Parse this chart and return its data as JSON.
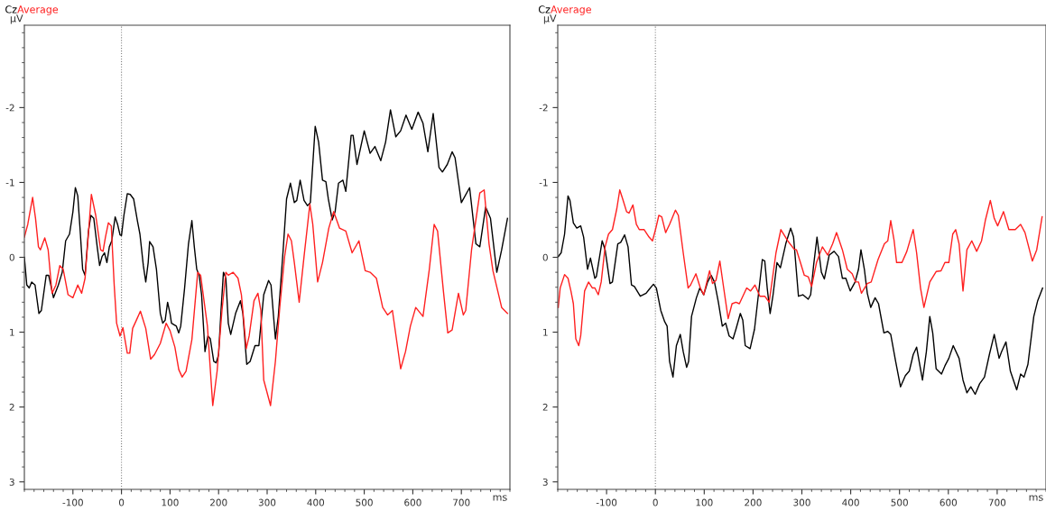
{
  "chart_data": [
    {
      "type": "line",
      "xlabel": "ms",
      "ylabel": "µV",
      "xlim": [
        -200,
        800
      ],
      "ylim": [
        3.1,
        -3.1
      ],
      "xticks": [
        -100,
        0,
        100,
        200,
        300,
        400,
        500,
        600,
        700
      ],
      "yticks": [
        -2,
        -1,
        0,
        1,
        2,
        3
      ],
      "grid": false,
      "legend": "top left",
      "marker": "none",
      "line_style": "solid",
      "ref_lines": [
        {
          "axis": "x",
          "value": 0,
          "color": "#808080",
          "line_style": "dotted"
        }
      ],
      "series": [
        {
          "name": "Cz",
          "color": "#000000",
          "x": [
            -200,
            -195,
            -190,
            -185,
            -178,
            -170,
            -165,
            -155,
            -150,
            -140,
            -130,
            -122,
            -115,
            -107,
            -100,
            -95,
            -90,
            -85,
            -80,
            -75,
            -68,
            -63,
            -57,
            -50,
            -45,
            -40,
            -35,
            -30,
            -25,
            -20,
            -13,
            -8,
            -3,
            0,
            5,
            12,
            18,
            25,
            33,
            38,
            45,
            50,
            55,
            58,
            65,
            72,
            80,
            85,
            90,
            95,
            100,
            103,
            113,
            118,
            122,
            130,
            138,
            145,
            150,
            155,
            160,
            165,
            172,
            178,
            183,
            190,
            195,
            200,
            205,
            210,
            215,
            220,
            225,
            235,
            245,
            250,
            258,
            265,
            275,
            283,
            293,
            303,
            308,
            317,
            323,
            333,
            340,
            348,
            356,
            361,
            368,
            376,
            383,
            389,
            399,
            406,
            414,
            421,
            426,
            434,
            440,
            447,
            456,
            462,
            473,
            477,
            485,
            500,
            512,
            522,
            534,
            544,
            554,
            565,
            575,
            586,
            598,
            611,
            621,
            631,
            642,
            654,
            661,
            671,
            681,
            687,
            700,
            717,
            730,
            738,
            750,
            760,
            773,
            783,
            795
          ],
          "values": [
            0,
            0.37,
            0.41,
            0.33,
            0.37,
            0.75,
            0.71,
            0.24,
            0.24,
            0.54,
            0.37,
            0.2,
            -0.22,
            -0.31,
            -0.61,
            -0.93,
            -0.82,
            -0.35,
            0.16,
            0.24,
            -0.35,
            -0.56,
            -0.52,
            -0.14,
            0.11,
            -0.01,
            -0.06,
            0.07,
            -0.14,
            -0.22,
            -0.54,
            -0.44,
            -0.3,
            -0.29,
            -0.56,
            -0.85,
            -0.84,
            -0.78,
            -0.48,
            -0.31,
            0.11,
            0.33,
            0.07,
            -0.21,
            -0.14,
            0.16,
            0.75,
            0.88,
            0.84,
            0.6,
            0.75,
            0.88,
            0.92,
            1.01,
            0.92,
            0.41,
            -0.18,
            -0.49,
            -0.14,
            0.16,
            0.24,
            0.5,
            1.26,
            1.05,
            1.09,
            1.39,
            1.41,
            1.3,
            0.71,
            0.2,
            0.28,
            0.88,
            1.03,
            0.75,
            0.58,
            0.75,
            1.43,
            1.39,
            1.18,
            1.18,
            0.5,
            0.31,
            0.37,
            1.09,
            0.79,
            -0.1,
            -0.78,
            -0.99,
            -0.73,
            -0.76,
            -1.03,
            -0.76,
            -0.69,
            -0.73,
            -1.75,
            -1.54,
            -1.03,
            -1.01,
            -0.78,
            -0.5,
            -0.61,
            -0.99,
            -1.03,
            -0.88,
            -1.63,
            -1.63,
            -1.24,
            -1.69,
            -1.39,
            -1.48,
            -1.29,
            -1.54,
            -1.97,
            -1.61,
            -1.69,
            -1.9,
            -1.71,
            -1.94,
            -1.79,
            -1.41,
            -1.92,
            -1.2,
            -1.14,
            -1.24,
            -1.41,
            -1.33,
            -0.73,
            -0.93,
            -0.18,
            -0.14,
            -0.67,
            -0.52,
            0.2,
            -0.1,
            -0.52
          ]
        },
        {
          "name": "Average",
          "color": "#ff2020",
          "x": [
            -200,
            -193,
            -183,
            -177,
            -171,
            -167,
            -158,
            -151,
            -143,
            -135,
            -127,
            -120,
            -110,
            -100,
            -90,
            -82,
            -75,
            -62,
            -53,
            -43,
            -38,
            -33,
            -27,
            -21,
            -15,
            -10,
            -3,
            3,
            12,
            17,
            23,
            30,
            39,
            50,
            60,
            68,
            80,
            92,
            100,
            110,
            118,
            125,
            133,
            145,
            157,
            163,
            177,
            188,
            197,
            207,
            215,
            220,
            230,
            240,
            247,
            257,
            263,
            273,
            281,
            287,
            293,
            307,
            317,
            326,
            336,
            343,
            350,
            356,
            366,
            376,
            388,
            394,
            404,
            414,
            427,
            437,
            449,
            462,
            475,
            489,
            502,
            512,
            525,
            538,
            548,
            558,
            575,
            585,
            595,
            606,
            621,
            634,
            644,
            651,
            663,
            672,
            681,
            694,
            704,
            709,
            721,
            738,
            747,
            757,
            765,
            783,
            795
          ],
          "values": [
            -0.27,
            -0.44,
            -0.8,
            -0.52,
            -0.14,
            -0.1,
            -0.26,
            -0.1,
            0.48,
            0.37,
            0.11,
            0.16,
            0.5,
            0.54,
            0.37,
            0.48,
            0.28,
            -0.84,
            -0.56,
            -0.1,
            -0.08,
            -0.27,
            -0.46,
            -0.42,
            0.37,
            0.88,
            1.05,
            0.94,
            1.28,
            1.28,
            0.95,
            0.85,
            0.72,
            0.95,
            1.36,
            1.3,
            1.15,
            0.88,
            0.98,
            1.2,
            1.5,
            1.6,
            1.52,
            1.1,
            0.2,
            0.24,
            0.92,
            1.98,
            1.52,
            0.71,
            0.2,
            0.24,
            0.2,
            0.28,
            0.5,
            1.22,
            1.05,
            0.58,
            0.48,
            0.71,
            1.64,
            1.98,
            1.39,
            0.67,
            -0.01,
            -0.31,
            -0.22,
            0.07,
            0.6,
            -0.01,
            -0.71,
            -0.44,
            0.33,
            0.07,
            -0.39,
            -0.61,
            -0.39,
            -0.35,
            -0.06,
            -0.22,
            0.18,
            0.2,
            0.28,
            0.67,
            0.77,
            0.71,
            1.49,
            1.26,
            0.92,
            0.67,
            0.79,
            0.16,
            -0.44,
            -0.35,
            0.45,
            1.01,
            0.97,
            0.48,
            0.77,
            0.71,
            -0.1,
            -0.86,
            -0.9,
            -0.18,
            0.18,
            0.67,
            0.75
          ]
        }
      ]
    },
    {
      "type": "line",
      "xlabel": "ms",
      "ylabel": "µV",
      "xlim": [
        -200,
        800
      ],
      "ylim": [
        3.1,
        -3.1
      ],
      "xticks": [
        -100,
        0,
        100,
        200,
        300,
        400,
        500,
        600,
        700
      ],
      "yticks": [
        -2,
        -1,
        0,
        1,
        2,
        3
      ],
      "grid": false,
      "legend": "top left",
      "marker": "none",
      "line_style": "solid",
      "ref_lines": [
        {
          "axis": "x",
          "value": 0,
          "color": "#808080",
          "line_style": "dotted"
        }
      ],
      "series": [
        {
          "name": "Cz",
          "color": "#000000",
          "x": [
            -199,
            -193,
            -186,
            -179,
            -175,
            -168,
            -161,
            -153,
            -147,
            -139,
            -133,
            -124,
            -121,
            -109,
            -103,
            -93,
            -88,
            -77,
            -71,
            -63,
            -56,
            -49,
            -43,
            -31,
            -19,
            -13,
            -4,
            2,
            11,
            19,
            24,
            29,
            36,
            43,
            51,
            57,
            64,
            68,
            74,
            84,
            91,
            99,
            107,
            114,
            121,
            129,
            137,
            144,
            151,
            159,
            165,
            174,
            179,
            184,
            194,
            203,
            211,
            219,
            224,
            229,
            235,
            241,
            249,
            256,
            267,
            277,
            283,
            293,
            302,
            313,
            318,
            324,
            331,
            340,
            346,
            356,
            366,
            375,
            383,
            390,
            399,
            409,
            416,
            421,
            428,
            434,
            441,
            450,
            457,
            468,
            476,
            482,
            492,
            502,
            512,
            520,
            528,
            535,
            547,
            555,
            562,
            568,
            575,
            586,
            593,
            601,
            610,
            622,
            630,
            638,
            646,
            655,
            664,
            674,
            684,
            694,
            704,
            709,
            718,
            727,
            740,
            748,
            755,
            763,
            775,
            783,
            793
          ],
          "values": [
            -0.01,
            -0.06,
            -0.31,
            -0.82,
            -0.76,
            -0.46,
            -0.39,
            -0.42,
            -0.27,
            0.16,
            0.01,
            0.28,
            0.26,
            -0.22,
            -0.1,
            0.35,
            0.33,
            -0.18,
            -0.2,
            -0.3,
            -0.14,
            0.37,
            0.39,
            0.52,
            0.48,
            0.43,
            0.36,
            0.41,
            0.71,
            0.86,
            0.92,
            1.39,
            1.6,
            1.18,
            1.03,
            1.26,
            1.47,
            1.39,
            0.79,
            0.54,
            0.41,
            0.5,
            0.33,
            0.24,
            0.33,
            0.6,
            0.92,
            0.88,
            1.05,
            1.09,
            0.96,
            0.75,
            0.84,
            1.18,
            1.22,
            0.96,
            0.5,
            0.03,
            0.05,
            0.41,
            0.75,
            0.5,
            0.07,
            0.14,
            -0.18,
            -0.39,
            -0.27,
            0.52,
            0.5,
            0.56,
            0.5,
            0.11,
            -0.27,
            0.2,
            0.29,
            -0.03,
            -0.08,
            -0.01,
            0.28,
            0.28,
            0.45,
            0.33,
            0.16,
            -0.1,
            0.16,
            0.48,
            0.67,
            0.54,
            0.62,
            1.01,
            0.99,
            1.03,
            1.39,
            1.73,
            1.58,
            1.52,
            1.3,
            1.2,
            1.64,
            1.26,
            0.79,
            1.01,
            1.49,
            1.56,
            1.45,
            1.35,
            1.18,
            1.35,
            1.64,
            1.81,
            1.73,
            1.83,
            1.69,
            1.6,
            1.3,
            1.03,
            1.35,
            1.26,
            1.13,
            1.52,
            1.77,
            1.56,
            1.6,
            1.43,
            0.79,
            0.58,
            0.41
          ]
        },
        {
          "name": "Average",
          "color": "#ff2020",
          "x": [
            -199,
            -195,
            -186,
            -179,
            -173,
            -168,
            -163,
            -157,
            -153,
            -145,
            -137,
            -129,
            -124,
            -117,
            -111,
            -103,
            -96,
            -88,
            -79,
            -73,
            -67,
            -59,
            -54,
            -46,
            -39,
            -33,
            -23,
            -13,
            -6,
            1,
            7,
            13,
            21,
            29,
            41,
            47,
            57,
            67,
            72,
            83,
            92,
            99,
            111,
            117,
            124,
            132,
            139,
            149,
            157,
            165,
            172,
            187,
            195,
            204,
            214,
            224,
            233,
            247,
            257,
            271,
            284,
            289,
            297,
            305,
            313,
            320,
            330,
            342,
            353,
            363,
            371,
            383,
            393,
            403,
            410,
            416,
            422,
            434,
            442,
            456,
            469,
            476,
            482,
            489,
            494,
            505,
            515,
            528,
            535,
            543,
            550,
            562,
            575,
            585,
            593,
            601,
            609,
            615,
            622,
            630,
            638,
            648,
            658,
            668,
            676,
            686,
            694,
            701,
            713,
            724,
            737,
            748,
            757,
            772,
            781,
            792
          ],
          "values": [
            0.67,
            0.41,
            0.23,
            0.28,
            0.45,
            0.62,
            1.09,
            1.18,
            1.05,
            0.45,
            0.33,
            0.41,
            0.41,
            0.5,
            0.33,
            -0.14,
            -0.31,
            -0.37,
            -0.65,
            -0.9,
            -0.78,
            -0.61,
            -0.59,
            -0.7,
            -0.44,
            -0.37,
            -0.37,
            -0.27,
            -0.22,
            -0.39,
            -0.56,
            -0.54,
            -0.33,
            -0.44,
            -0.63,
            -0.56,
            -0.06,
            0.41,
            0.37,
            0.22,
            0.41,
            0.5,
            0.18,
            0.35,
            0.31,
            0.05,
            0.37,
            0.82,
            0.62,
            0.6,
            0.62,
            0.41,
            0.45,
            0.37,
            0.52,
            0.52,
            0.6,
            -0.06,
            -0.37,
            -0.22,
            -0.11,
            -0.1,
            0.07,
            0.24,
            0.26,
            0.39,
            0.07,
            -0.14,
            -0.03,
            -0.18,
            -0.33,
            -0.1,
            0.16,
            0.22,
            0.33,
            0.33,
            0.48,
            0.35,
            0.33,
            0.03,
            -0.18,
            -0.22,
            -0.49,
            -0.22,
            0.07,
            0.07,
            -0.08,
            -0.37,
            -0.06,
            0.41,
            0.67,
            0.33,
            0.19,
            0.18,
            0.07,
            0.07,
            -0.31,
            -0.37,
            -0.18,
            0.45,
            -0.1,
            -0.22,
            -0.08,
            -0.22,
            -0.5,
            -0.76,
            -0.52,
            -0.42,
            -0.61,
            -0.37,
            -0.37,
            -0.44,
            -0.33,
            0.05,
            -0.1,
            -0.54
          ]
        }
      ]
    }
  ]
}
